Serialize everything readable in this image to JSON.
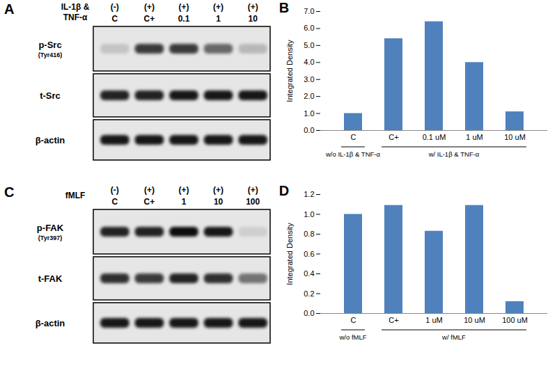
{
  "chart_data": [
    {
      "type": "bar",
      "panel": "B",
      "y_label": "Integrated Density",
      "categories": [
        "C",
        "C+",
        "0.1 uM",
        "1 uM",
        "10 uM"
      ],
      "values": [
        1.0,
        5.4,
        6.4,
        4.0,
        1.1
      ],
      "color": "#4f81bd",
      "ylim": [
        0,
        7
      ],
      "yticks": [
        {
          "value": 0,
          "label": "0.0"
        },
        {
          "value": 1,
          "label": "1.0"
        },
        {
          "value": 2,
          "label": "2.0"
        },
        {
          "value": 3,
          "label": "3.0"
        },
        {
          "value": 4,
          "label": "4.0"
        },
        {
          "value": 5,
          "label": "5.0"
        },
        {
          "value": 6,
          "label": "6.0"
        },
        {
          "value": 7,
          "label": "7.0"
        }
      ],
      "grid": false,
      "x_groups": [
        {
          "label": "w/o IL-1β & TNF-α",
          "categories": [
            "C"
          ]
        },
        {
          "label": "w/ IL-1β & TNF-α",
          "categories": [
            "C+",
            "0.1 uM",
            "1 uM",
            "10 uM"
          ]
        }
      ]
    },
    {
      "type": "bar",
      "panel": "D",
      "y_label": "Integrated Density",
      "categories": [
        "C",
        "C+",
        "1 uM",
        "10 uM",
        "100 uM"
      ],
      "values": [
        1.0,
        1.09,
        0.83,
        1.09,
        0.12
      ],
      "color": "#4f81bd",
      "ylim": [
        0,
        1.2
      ],
      "yticks": [
        {
          "value": 0,
          "label": "0.0"
        },
        {
          "value": 0.2,
          "label": "0.2"
        },
        {
          "value": 0.4,
          "label": "0.4"
        },
        {
          "value": 0.6,
          "label": "0.6"
        },
        {
          "value": 0.8,
          "label": "0.8"
        },
        {
          "value": 1,
          "label": "1.0"
        },
        {
          "value": 1.2,
          "label": "1.2"
        }
      ],
      "grid": false,
      "x_groups": [
        {
          "label": "w/o fMLF",
          "categories": [
            "C"
          ]
        },
        {
          "label": "w/ fMLF",
          "categories": [
            "C+",
            "1 uM",
            "10 uM",
            "100 uM"
          ]
        }
      ]
    }
  ],
  "blots": [
    {
      "panel": "A",
      "treatment": [
        "IL-1β &",
        "TNF-α"
      ],
      "signs": [
        "(-)",
        "(+)",
        "(+)",
        "(+)",
        "(+)"
      ],
      "lanes": [
        "C",
        "C+",
        "0.1",
        "1",
        "10"
      ],
      "rows": [
        {
          "label": "p-Src",
          "sublabel": "(Tyr416)",
          "band_intensity": [
            0.15,
            0.75,
            0.75,
            0.55,
            0.2
          ]
        },
        {
          "label": "t-Src",
          "band_intensity": [
            0.85,
            0.85,
            0.9,
            0.9,
            0.9
          ]
        },
        {
          "label": "β-actin",
          "band_intensity": [
            0.9,
            0.9,
            0.9,
            0.9,
            0.9
          ]
        }
      ]
    },
    {
      "panel": "C",
      "treatment": [
        "fMLF"
      ],
      "signs": [
        "(-)",
        "(+)",
        "(+)",
        "(+)",
        "(+)"
      ],
      "lanes": [
        "C",
        "C+",
        "1",
        "10",
        "100"
      ],
      "rows": [
        {
          "label": "p-FAK",
          "sublabel": "(Tyr397)",
          "band_intensity": [
            0.85,
            0.85,
            0.95,
            0.9,
            0.1
          ]
        },
        {
          "label": "t-FAK",
          "band_intensity": [
            0.8,
            0.75,
            0.85,
            0.8,
            0.5
          ]
        },
        {
          "label": "β-actin",
          "band_intensity": [
            0.9,
            0.9,
            0.9,
            0.9,
            0.9
          ]
        }
      ]
    }
  ]
}
